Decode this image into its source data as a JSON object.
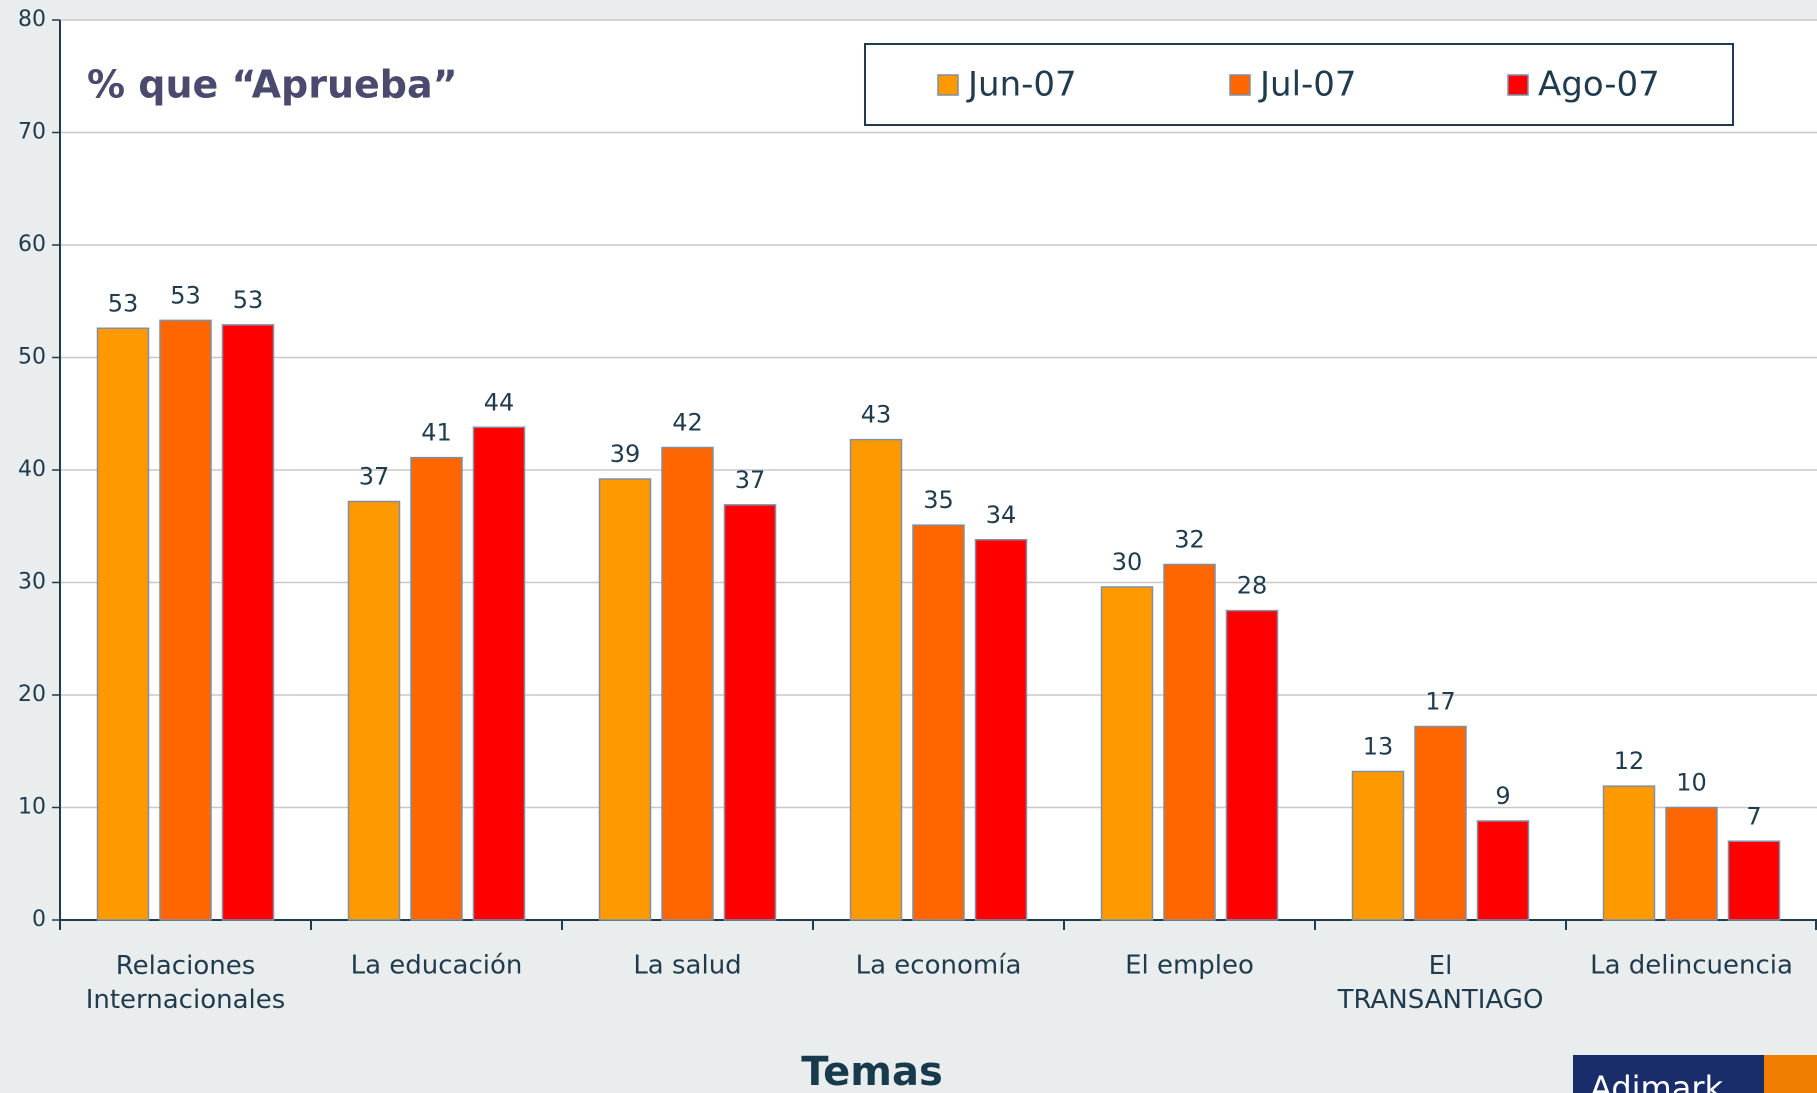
{
  "chart_data": {
    "type": "bar",
    "title": "% que “Aprueba”",
    "x_label": "Temas",
    "logo": "Adimark",
    "categories": [
      "Relaciones\nInternacionales",
      "La educación",
      "La salud",
      "La economía",
      "El empleo",
      "El\nTRANSANTIAGO",
      "La delincuencia"
    ],
    "series": [
      {
        "name": "Jun-07",
        "color": "#ff9900",
        "values": [
          52.6,
          37.2,
          39.2,
          42.7,
          29.6,
          13.2,
          11.9
        ],
        "value_labels": [
          "53",
          "37",
          "39",
          "43",
          "30",
          "13",
          "12"
        ]
      },
      {
        "name": "Jul-07",
        "color": "#ff6600",
        "values": [
          53.3,
          41.1,
          42.0,
          35.1,
          31.6,
          17.2,
          10.0
        ],
        "value_labels": [
          "53",
          "41",
          "42",
          "35",
          "32",
          "17",
          "10"
        ]
      },
      {
        "name": "Ago-07",
        "color": "#ff0000",
        "values": [
          52.9,
          43.8,
          36.9,
          33.8,
          27.5,
          8.8,
          7.0
        ],
        "value_labels": [
          "53",
          "44",
          "37",
          "34",
          "28",
          "9",
          "7"
        ]
      }
    ],
    "ylim": [
      0,
      80
    ],
    "yticks": [
      0,
      10,
      20,
      30,
      40,
      50,
      60,
      70,
      80
    ],
    "grid": true,
    "legend": "top-right"
  }
}
